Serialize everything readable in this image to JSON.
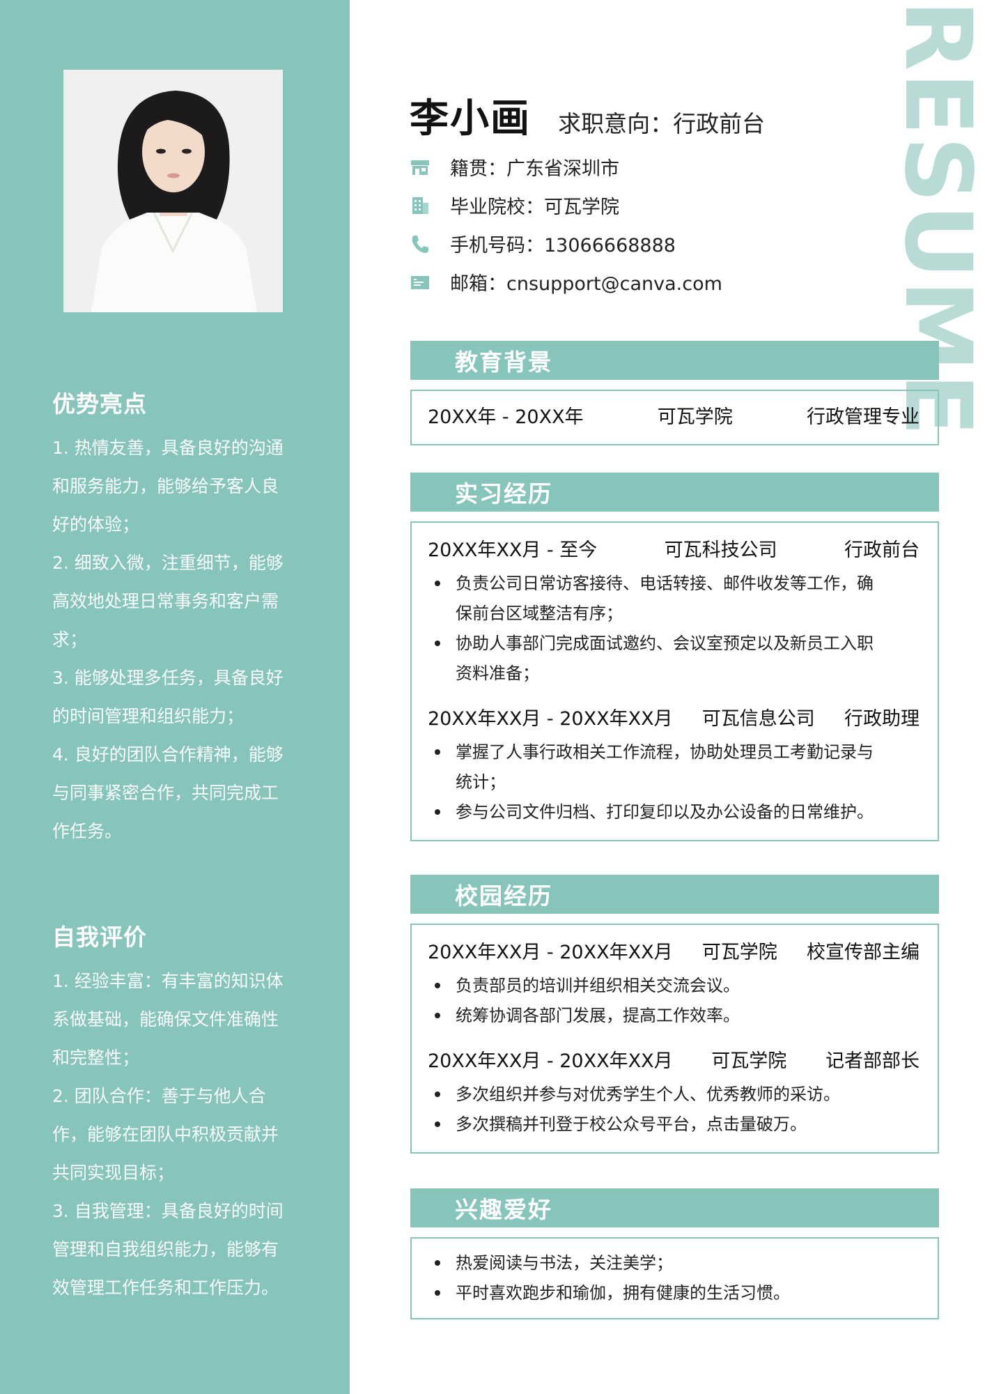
{
  "watermark": "RESUME",
  "header": {
    "name": "李小画",
    "objective": "求职意向：行政前台"
  },
  "contacts": [
    {
      "icon": "store-icon",
      "text": "籍贯：广东省深圳市"
    },
    {
      "icon": "building-icon",
      "text": "毕业院校：可瓦学院"
    },
    {
      "icon": "phone-icon",
      "text": "手机号码：13066668888"
    },
    {
      "icon": "mail-icon",
      "text": "邮箱：cnsupport@canva.com"
    }
  ],
  "sidebar": {
    "strengths": {
      "title": "优势亮点",
      "lines": [
        "1. 热情友善，具备良好的沟通",
        "和服务能力，能够给予客人良",
        "好的体验；",
        "2. 细致入微，注重细节，能够",
        "高效地处理日常事务和客户需",
        "求；",
        "3. 能够处理多任务，具备良好",
        "的时间管理和组织能力；",
        "4. 良好的团队合作精神，能够",
        "与同事紧密合作，共同完成工",
        "作任务。"
      ]
    },
    "self_eval": {
      "title": "自我评价",
      "lines": [
        "1. 经验丰富：有丰富的知识体",
        "系做基础，能确保文件准确性",
        "和完整性；",
        "2. 团队合作：善于与他人合",
        "作，能够在团队中积极贡献并",
        "共同实现目标；",
        "3. 自我管理：具备良好的时间",
        "管理和自我组织能力，能够有",
        "效管理工作任务和工作压力。"
      ]
    }
  },
  "education": {
    "title": "教育背景",
    "period": "20XX年 - 20XX年",
    "school": "可瓦学院",
    "major": "行政管理专业"
  },
  "internship": {
    "title": "实习经历",
    "entries": [
      {
        "period": "20XX年XX月 - 至今",
        "org": "可瓦科技公司",
        "role": "行政前台",
        "bullets": [
          "负责公司日常访客接待、电话转接、邮件收发等工作，确",
          "保前台区域整洁有序；",
          "协助人事部门完成面试邀约、会议室预定以及新员工入职",
          "资料准备；"
        ]
      },
      {
        "period": "20XX年XX月 - 20XX年XX月",
        "org": "可瓦信息公司",
        "role": "行政助理",
        "bullets": [
          "掌握了人事行政相关工作流程，协助处理员工考勤记录与",
          "统计；",
          "参与公司文件归档、打印复印以及办公设备的日常维护。"
        ]
      }
    ]
  },
  "campus": {
    "title": "校园经历",
    "entries": [
      {
        "period": "20XX年XX月 - 20XX年XX月",
        "org": "可瓦学院",
        "role": "校宣传部主编",
        "bullets": [
          "负责部员的培训并组织相关交流会议。",
          "统筹协调各部门发展，提高工作效率。"
        ]
      },
      {
        "period": "20XX年XX月 - 20XX年XX月",
        "org": "可瓦学院",
        "role": "记者部部长",
        "bullets": [
          "多次组织并参与对优秀学生个人、优秀教师的采访。",
          "多次撰稿并刊登于校公众号平台，点击量破万。"
        ]
      }
    ]
  },
  "hobbies": {
    "title": "兴趣爱好",
    "bullets": [
      "热爱阅读与书法，关注美学；",
      "平时喜欢跑步和瑜伽，拥有健康的生活习惯。"
    ]
  },
  "colors": {
    "accent": "#87c4bb",
    "watermark": "#b9dbd5"
  }
}
